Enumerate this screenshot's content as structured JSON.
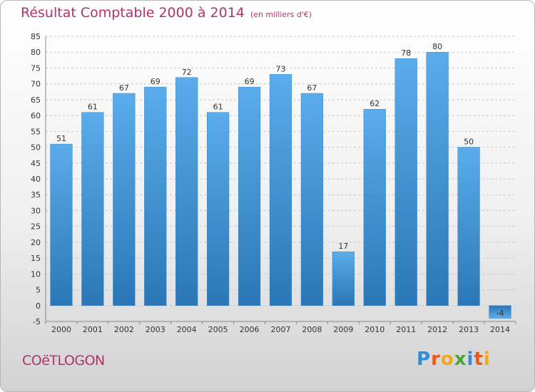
{
  "title": "Résultat Comptable 2000 à 2014",
  "subtitle": "(en milliers d'€)",
  "commune": "COëTLOGON",
  "brand": {
    "letters": [
      {
        "char": "P",
        "color": "#2e8fd6"
      },
      {
        "char": "r",
        "color": "#e85a1c"
      },
      {
        "char": "o",
        "color": "#f2a81d"
      },
      {
        "char": "x",
        "color": "#4aa63a"
      },
      {
        "char": "i",
        "color": "#2e8fd6"
      },
      {
        "char": "t",
        "color": "#e85a1c"
      },
      {
        "char": "i",
        "color": "#f2a81d"
      }
    ]
  },
  "colors": {
    "title": "#b3336b",
    "bar_top": "#5aacea",
    "bar_bottom": "#2b77b6",
    "grid": "#c8c8c8"
  },
  "chart_data": {
    "type": "bar",
    "categories": [
      "2000",
      "2001",
      "2002",
      "2003",
      "2004",
      "2005",
      "2006",
      "2007",
      "2008",
      "2009",
      "2010",
      "2011",
      "2012",
      "2013",
      "2014"
    ],
    "values": [
      51,
      61,
      67,
      69,
      72,
      61,
      69,
      73,
      67,
      17,
      62,
      78,
      80,
      50,
      -4
    ],
    "data_labels": [
      "51",
      "61",
      "67",
      "69",
      "72",
      "61",
      "69",
      "73",
      "67",
      "17",
      "62",
      "78",
      "80",
      "50",
      "-4"
    ],
    "yticks": [
      -5,
      0,
      5,
      10,
      15,
      20,
      25,
      30,
      35,
      40,
      45,
      50,
      55,
      60,
      65,
      70,
      75,
      80,
      85
    ],
    "ylim": [
      -5,
      85
    ],
    "grid": true
  }
}
